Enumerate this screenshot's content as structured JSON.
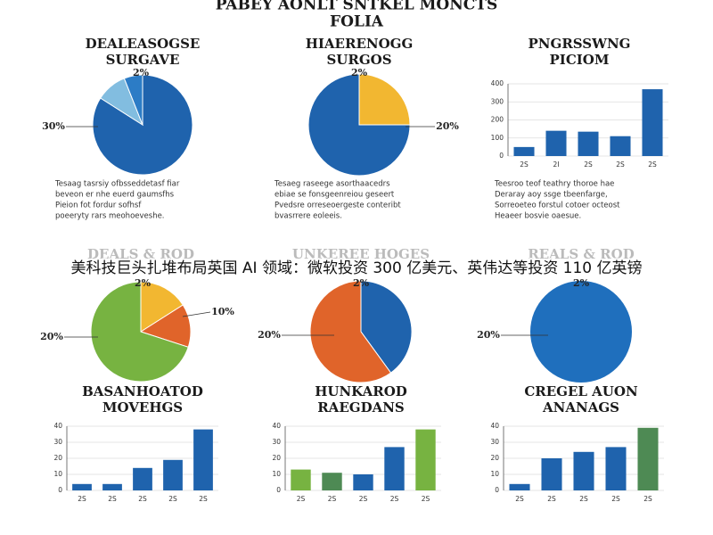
{
  "title": [
    "PABEY AONLT SNTKEL MONCTS",
    "FOLIA"
  ],
  "caption": "美科技巨头扎堆布局英国 AI 领域：微软投资 300 亿美元、英伟达等投资 110 亿英镑",
  "chart_data": [
    {
      "type": "pie",
      "title": [
        "DEALEASOGSE",
        "SURGAVE"
      ],
      "values": [
        84,
        10,
        6
      ],
      "colors": [
        "#1f63ad",
        "#82bde0",
        "#2c7cc6"
      ],
      "annotations": [
        "2%",
        "30%"
      ],
      "paragraph": [
        "Tesaag tasrsiy ofbsseddetasf fiar",
        "beveon er nhe euerd gaumsfhs",
        "Pieion fot fordur sofhsf",
        "poeeryty rars meohoeveshe."
      ]
    },
    {
      "type": "pie",
      "title": [
        "HIAERENOGG",
        "SURGOS"
      ],
      "values": [
        25,
        75
      ],
      "colors": [
        "#f2b731",
        "#1f63ad"
      ],
      "annotations": [
        "2%",
        "20%"
      ],
      "paragraph": [
        "Tesaeg raseege asorthaacedrs",
        "ebiae se fonsgeenreiou geseert",
        "Pvedsre orreseoergeste conteribt",
        "bvasrrere eoleeis."
      ]
    },
    {
      "type": "bar",
      "title": [
        "PNGRSSWNG",
        "PICIOM"
      ],
      "categories": [
        "2S",
        "2I",
        "2S",
        "2S",
        "2S"
      ],
      "values": [
        50,
        140,
        135,
        110,
        370
      ],
      "colors": [
        "#1f63ad",
        "#1f63ad",
        "#1f63ad",
        "#1f63ad",
        "#1f63ad"
      ],
      "ylim": [
        0,
        400
      ],
      "yticks": [
        0,
        100,
        200,
        300,
        400
      ],
      "paragraph": [
        "Teesroo teof teathry thoroe hae",
        "Deraray aoy ssge tbeenfarge,",
        "Sorreoeteo forstul cotoer octeost",
        "Heaeer bosvie oaesue."
      ]
    },
    {
      "type": "pie",
      "title": [
        "DEALS & ROD"
      ],
      "values": [
        16,
        14,
        70
      ],
      "colors": [
        "#f2b731",
        "#e0642a",
        "#77b341"
      ],
      "annotations": [
        "2%",
        "10%",
        "20%"
      ]
    },
    {
      "type": "pie",
      "title": [
        "UNKEREE HOGES"
      ],
      "values": [
        40,
        60
      ],
      "colors": [
        "#1f63ad",
        "#e0642a"
      ],
      "annotations": [
        "2%",
        "20%"
      ]
    },
    {
      "type": "pie",
      "title": [
        "REALS & ROD"
      ],
      "values": [
        100
      ],
      "colors": [
        "#1f6fbd"
      ],
      "annotations": [
        "2%",
        "20%"
      ]
    },
    {
      "type": "bar",
      "title": [
        "BASANHOATOD",
        "MOVEHGS"
      ],
      "categories": [
        "2S",
        "2S",
        "2S",
        "2S",
        "2S"
      ],
      "values": [
        4,
        4,
        14,
        19,
        38
      ],
      "colors": [
        "#1f63ad",
        "#1f63ad",
        "#1f63ad",
        "#1f63ad",
        "#1f63ad"
      ],
      "ylim": [
        0,
        40
      ],
      "yticks": [
        0,
        10,
        20,
        30,
        40
      ]
    },
    {
      "type": "bar",
      "title": [
        "HUNKAROD",
        "RAEGDANS"
      ],
      "categories": [
        "2S",
        "2S",
        "2S",
        "2S",
        "2S"
      ],
      "values": [
        13,
        11,
        10,
        27,
        38
      ],
      "colors": [
        "#77b341",
        "#4e8a54",
        "#1f63ad",
        "#1f63ad",
        "#77b341"
      ],
      "ylim": [
        0,
        40
      ],
      "yticks": [
        0,
        10,
        20,
        30,
        40
      ]
    },
    {
      "type": "bar",
      "title": [
        "CREGEL AUON",
        "ANANAGS"
      ],
      "categories": [
        "2S",
        "2S",
        "2S",
        "2S",
        "2S"
      ],
      "values": [
        4,
        20,
        24,
        27,
        39
      ],
      "colors": [
        "#1f63ad",
        "#1f63ad",
        "#1f63ad",
        "#1f63ad",
        "#4e8a54"
      ],
      "ylim": [
        0,
        40
      ],
      "yticks": [
        0,
        10,
        20,
        30,
        40
      ]
    }
  ]
}
